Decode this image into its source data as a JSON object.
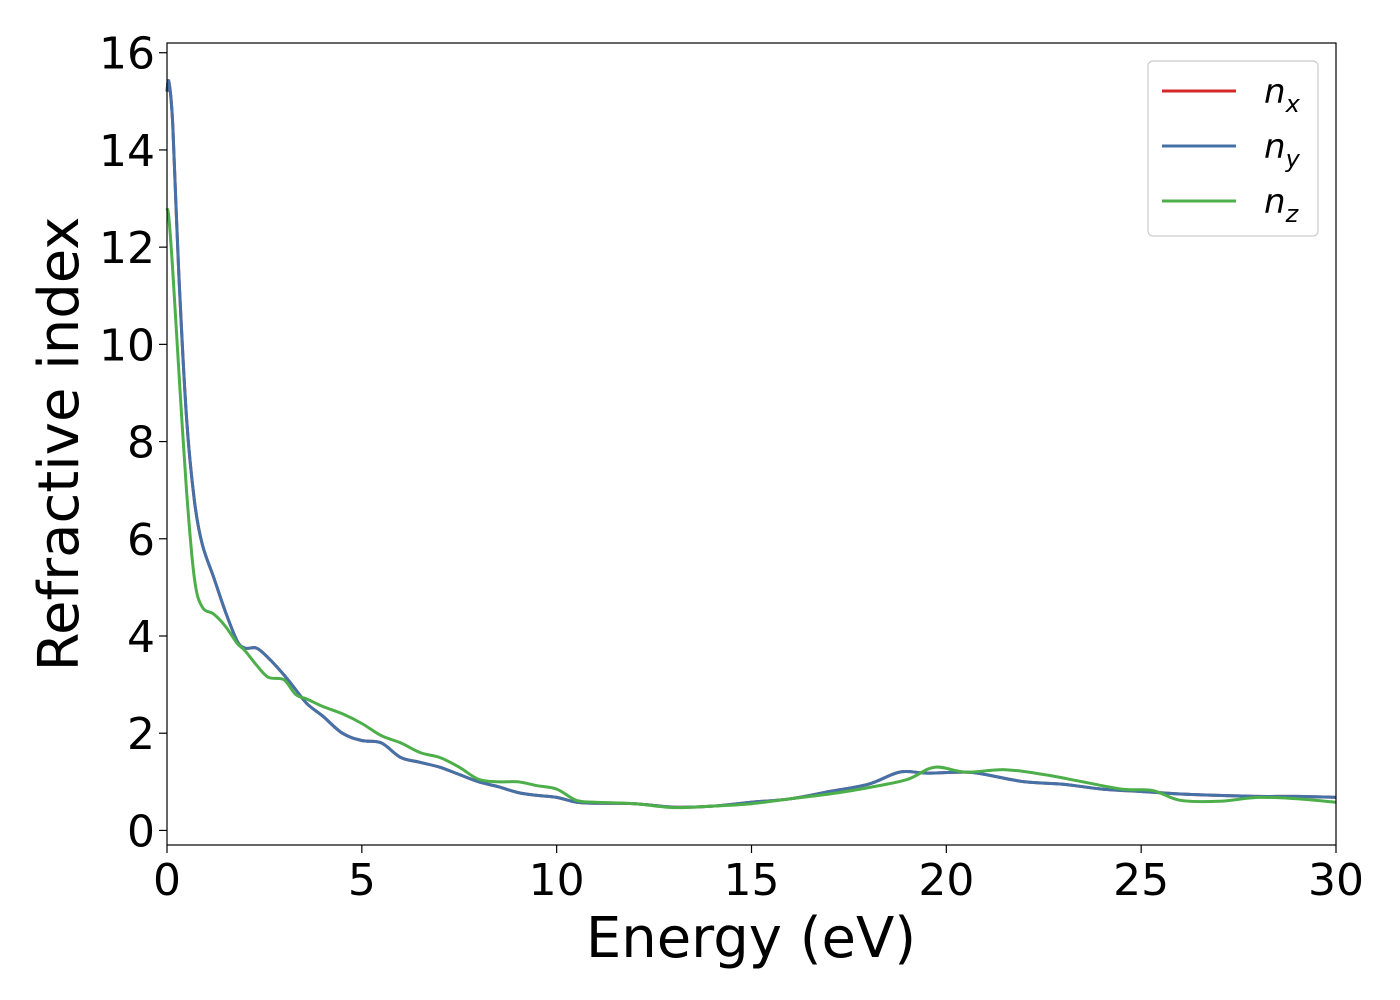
{
  "chart_data": {
    "type": "line",
    "xlabel": "Energy (eV)",
    "ylabel": "Refractive index",
    "xlim": [
      0,
      30
    ],
    "ylim": [
      -0.3,
      16.2
    ],
    "xticks": [
      0,
      5,
      10,
      15,
      20,
      25,
      30
    ],
    "yticks": [
      0,
      2,
      4,
      6,
      8,
      10,
      12,
      14,
      16
    ],
    "grid": false,
    "legend_position": "top-right",
    "series": [
      {
        "name": "n_x",
        "label_base": "n",
        "label_sub": "x",
        "color": "#d62728",
        "x": [
          0,
          0.05,
          0.15,
          0.3,
          0.5,
          0.7,
          0.9,
          1.2,
          1.5,
          1.8,
          2.0,
          2.3,
          2.6,
          3.0,
          3.3,
          3.6,
          4.0,
          4.5,
          5.0,
          5.5,
          6.0,
          6.5,
          7.0,
          7.5,
          8.0,
          8.5,
          9.0,
          9.5,
          10.0,
          10.5,
          11.0,
          12.0,
          13.0,
          14.0,
          15.0,
          16.0,
          17.0,
          18.0,
          18.8,
          19.5,
          20.5,
          21.0,
          22.0,
          23.0,
          24.0,
          25.0,
          26.0,
          27.0,
          28.0,
          29.0,
          30.0
        ],
        "values": [
          15.2,
          15.4,
          14.5,
          11.5,
          8.5,
          6.8,
          5.9,
          5.2,
          4.5,
          3.9,
          3.75,
          3.75,
          3.55,
          3.2,
          2.9,
          2.6,
          2.35,
          2.0,
          1.85,
          1.8,
          1.5,
          1.4,
          1.3,
          1.15,
          1.0,
          0.9,
          0.78,
          0.72,
          0.68,
          0.58,
          0.56,
          0.55,
          0.48,
          0.5,
          0.58,
          0.65,
          0.8,
          0.95,
          1.2,
          1.18,
          1.2,
          1.15,
          1.0,
          0.95,
          0.85,
          0.8,
          0.75,
          0.72,
          0.7,
          0.7,
          0.68
        ]
      },
      {
        "name": "n_y",
        "label_base": "n",
        "label_sub": "y",
        "color": "#4472a8",
        "x": [
          0,
          0.05,
          0.15,
          0.3,
          0.5,
          0.7,
          0.9,
          1.2,
          1.5,
          1.8,
          2.0,
          2.3,
          2.6,
          3.0,
          3.3,
          3.6,
          4.0,
          4.5,
          5.0,
          5.5,
          6.0,
          6.5,
          7.0,
          7.5,
          8.0,
          8.5,
          9.0,
          9.5,
          10.0,
          10.5,
          11.0,
          12.0,
          13.0,
          14.0,
          15.0,
          16.0,
          17.0,
          18.0,
          18.8,
          19.5,
          20.5,
          21.0,
          22.0,
          23.0,
          24.0,
          25.0,
          26.0,
          27.0,
          28.0,
          29.0,
          30.0
        ],
        "values": [
          15.2,
          15.4,
          14.5,
          11.5,
          8.5,
          6.8,
          5.9,
          5.2,
          4.5,
          3.9,
          3.75,
          3.75,
          3.55,
          3.2,
          2.9,
          2.6,
          2.35,
          2.0,
          1.85,
          1.8,
          1.5,
          1.4,
          1.3,
          1.15,
          1.0,
          0.9,
          0.78,
          0.72,
          0.68,
          0.58,
          0.56,
          0.55,
          0.48,
          0.5,
          0.58,
          0.65,
          0.8,
          0.95,
          1.2,
          1.18,
          1.2,
          1.15,
          1.0,
          0.95,
          0.85,
          0.8,
          0.75,
          0.72,
          0.7,
          0.7,
          0.68
        ]
      },
      {
        "name": "n_z",
        "label_base": "n",
        "label_sub": "z",
        "color": "#4daf4a",
        "x": [
          0,
          0.05,
          0.15,
          0.3,
          0.5,
          0.7,
          0.9,
          1.2,
          1.5,
          1.8,
          2.0,
          2.3,
          2.6,
          3.0,
          3.3,
          3.6,
          4.0,
          4.5,
          5.0,
          5.5,
          6.0,
          6.5,
          7.0,
          7.5,
          8.0,
          8.5,
          9.0,
          9.5,
          10.0,
          10.5,
          11.0,
          12.0,
          13.0,
          14.0,
          15.0,
          16.0,
          17.0,
          18.0,
          19.0,
          19.7,
          20.5,
          21.5,
          22.5,
          23.5,
          24.5,
          25.3,
          26.0,
          27.0,
          28.0,
          29.0,
          30.0
        ],
        "values": [
          12.8,
          12.6,
          11.5,
          9.5,
          7.0,
          5.2,
          4.6,
          4.45,
          4.2,
          3.85,
          3.7,
          3.4,
          3.15,
          3.1,
          2.8,
          2.7,
          2.55,
          2.4,
          2.2,
          1.95,
          1.8,
          1.6,
          1.5,
          1.3,
          1.05,
          1.0,
          1.0,
          0.92,
          0.85,
          0.62,
          0.58,
          0.55,
          0.47,
          0.5,
          0.55,
          0.65,
          0.75,
          0.88,
          1.05,
          1.3,
          1.2,
          1.25,
          1.15,
          1.0,
          0.85,
          0.82,
          0.62,
          0.6,
          0.68,
          0.65,
          0.58
        ]
      }
    ]
  }
}
